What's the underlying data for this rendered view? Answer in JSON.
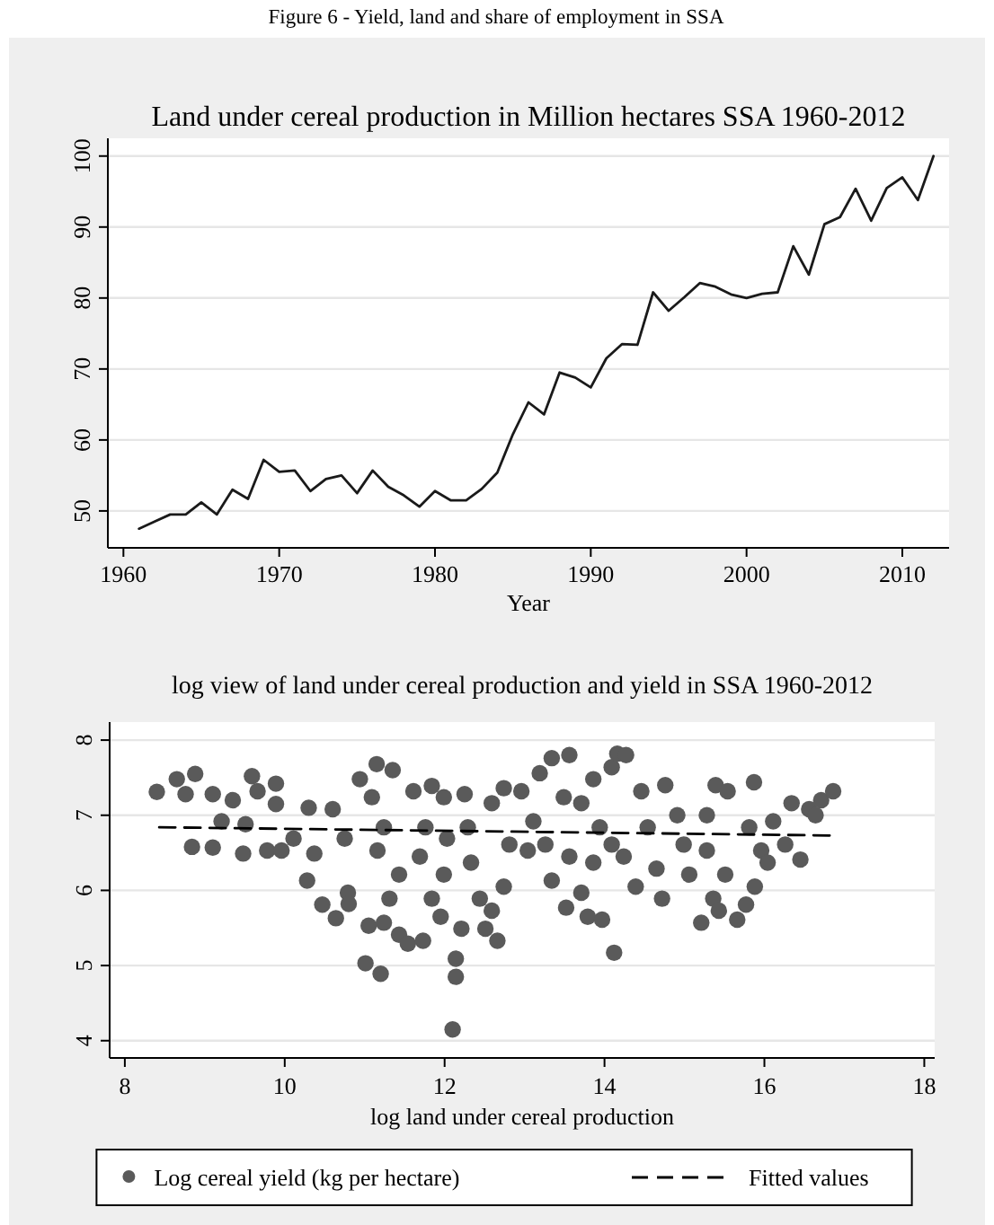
{
  "chart_data": [
    {
      "type": "line",
      "title": "Land under cereal production in Million hectares SSA 1960-2012",
      "xlabel": "Year",
      "annotations": [
        "Figure 6 - Yield, land and share of employment in SSA"
      ],
      "color": "#1a1a1a",
      "line_style": "solid",
      "grid": "y",
      "x": [
        1961,
        1962,
        1963,
        1964,
        1965,
        1966,
        1967,
        1968,
        1969,
        1970,
        1971,
        1972,
        1973,
        1974,
        1975,
        1976,
        1977,
        1978,
        1979,
        1980,
        1981,
        1982,
        1983,
        1984,
        1985,
        1986,
        1987,
        1988,
        1989,
        1990,
        1991,
        1992,
        1993,
        1994,
        1995,
        1996,
        1997,
        1998,
        1999,
        2000,
        2001,
        2002,
        2003,
        2004,
        2005,
        2006,
        2007,
        2008,
        2009,
        2010,
        2011,
        2012
      ],
      "values": [
        47.5,
        48.5,
        49.5,
        49.5,
        51.2,
        49.5,
        53,
        51.7,
        57.2,
        55.5,
        55.7,
        52.8,
        54.5,
        55,
        52.5,
        55.7,
        53.4,
        52.2,
        50.6,
        52.8,
        51.5,
        51.5,
        53.1,
        55.4,
        60.8,
        65.3,
        63.6,
        69.5,
        68.8,
        67.4,
        71.5,
        73.5,
        73.4,
        80.8,
        78.2,
        80.1,
        82.1,
        81.6,
        80.5,
        80,
        80.6,
        80.8,
        87.3,
        83.3,
        90.4,
        91.4,
        95.4,
        90.9,
        95.5,
        97,
        93.8,
        100
      ],
      "xlim": [
        1959,
        2013
      ],
      "ylim": [
        44.8,
        102.5
      ],
      "xticks": [
        1960,
        1970,
        1980,
        1990,
        2000,
        2010
      ],
      "yticks": [
        50,
        60,
        70,
        80,
        90,
        100
      ]
    },
    {
      "type": "scatter",
      "title": "log view of land under cereal production and yield in SSA 1960-2012",
      "xlabel": "log land under cereal production",
      "grid": "y",
      "legend": "bottom",
      "xlim": [
        7.81,
        18.13
      ],
      "ylim": [
        3.77,
        8.24
      ],
      "xticks": [
        8,
        10,
        12,
        14,
        16,
        18
      ],
      "yticks": [
        4,
        5,
        6,
        7,
        8
      ],
      "series": [
        {
          "name": "Log cereal yield (kg per hectare)",
          "marker": "circle",
          "color": "#5a5a5a",
          "x": [
            8.4,
            8.65,
            8.88,
            8.76,
            8.84,
            9.1,
            9.1,
            9.35,
            9.21,
            9.51,
            9.59,
            9.66,
            9.89,
            9.89,
            9.48,
            9.78,
            9.96,
            10.11,
            10.3,
            10.28,
            10.37,
            10.6,
            10.47,
            10.64,
            10.79,
            10.8,
            10.75,
            11.01,
            11.2,
            11.05,
            11.15,
            10.94,
            11.35,
            11.09,
            11.24,
            11.16,
            11.43,
            11.31,
            11.24,
            11.43,
            11.54,
            11.73,
            11.61,
            11.84,
            11.76,
            11.69,
            11.84,
            11.99,
            12.03,
            11.99,
            11.95,
            12.14,
            12.14,
            12.1,
            12.21,
            12.25,
            12.29,
            12.33,
            12.44,
            12.51,
            12.66,
            12.59,
            12.74,
            12.59,
            12.74,
            12.81,
            12.96,
            13.04,
            13.11,
            13.19,
            13.34,
            13.56,
            13.49,
            13.26,
            13.34,
            13.52,
            13.71,
            13.79,
            13.94,
            13.86,
            14.09,
            14.16,
            14.27,
            14.12,
            13.97,
            14.24,
            14.39,
            14.46,
            14.54,
            14.65,
            14.72,
            14.76,
            14.91,
            14.99,
            15.06,
            13.71,
            13.56,
            13.86,
            14.09,
            15.21,
            15.36,
            15.43,
            15.39,
            15.54,
            15.28,
            15.28,
            15.51,
            15.66,
            15.77,
            15.87,
            15.81,
            15.96,
            15.88,
            16.04,
            16.11,
            16.26,
            16.34,
            16.45,
            16.56,
            16.71,
            16.86,
            16.64
          ],
          "values": [
            7.31,
            7.48,
            7.55,
            7.28,
            6.58,
            7.28,
            6.57,
            7.2,
            6.92,
            6.88,
            7.52,
            7.32,
            7.42,
            7.15,
            6.49,
            6.53,
            6.53,
            6.69,
            7.1,
            6.13,
            6.49,
            7.08,
            5.81,
            5.63,
            5.97,
            5.82,
            6.69,
            5.03,
            4.89,
            5.53,
            7.68,
            7.48,
            7.6,
            7.24,
            6.84,
            6.53,
            6.21,
            5.89,
            5.57,
            5.41,
            5.29,
            5.33,
            7.32,
            7.39,
            6.84,
            6.45,
            5.89,
            7.24,
            6.69,
            6.21,
            5.65,
            5.09,
            4.85,
            4.15,
            5.49,
            7.28,
            6.84,
            6.37,
            5.89,
            5.49,
            5.33,
            5.73,
            6.05,
            7.16,
            7.36,
            6.61,
            7.32,
            6.53,
            6.92,
            7.56,
            7.76,
            7.8,
            7.24,
            6.61,
            6.13,
            5.77,
            5.97,
            5.65,
            6.84,
            7.48,
            7.64,
            7.82,
            7.8,
            5.17,
            5.61,
            6.45,
            6.05,
            7.32,
            6.84,
            6.29,
            5.89,
            7.4,
            7.0,
            6.61,
            6.21,
            7.16,
            6.45,
            6.37,
            6.61,
            5.57,
            5.89,
            5.73,
            7.4,
            7.32,
            7.0,
            6.53,
            6.21,
            5.61,
            5.81,
            7.44,
            6.84,
            6.53,
            6.05,
            6.37,
            6.92,
            6.61,
            7.16,
            6.41,
            7.08,
            7.2,
            7.32,
            7.0
          ]
        },
        {
          "name": "Fitted values",
          "type": "line",
          "color": "#000000",
          "line_style": "dashed",
          "x": [
            8.43,
            16.86
          ],
          "values": [
            6.84,
            6.73
          ]
        }
      ]
    }
  ]
}
